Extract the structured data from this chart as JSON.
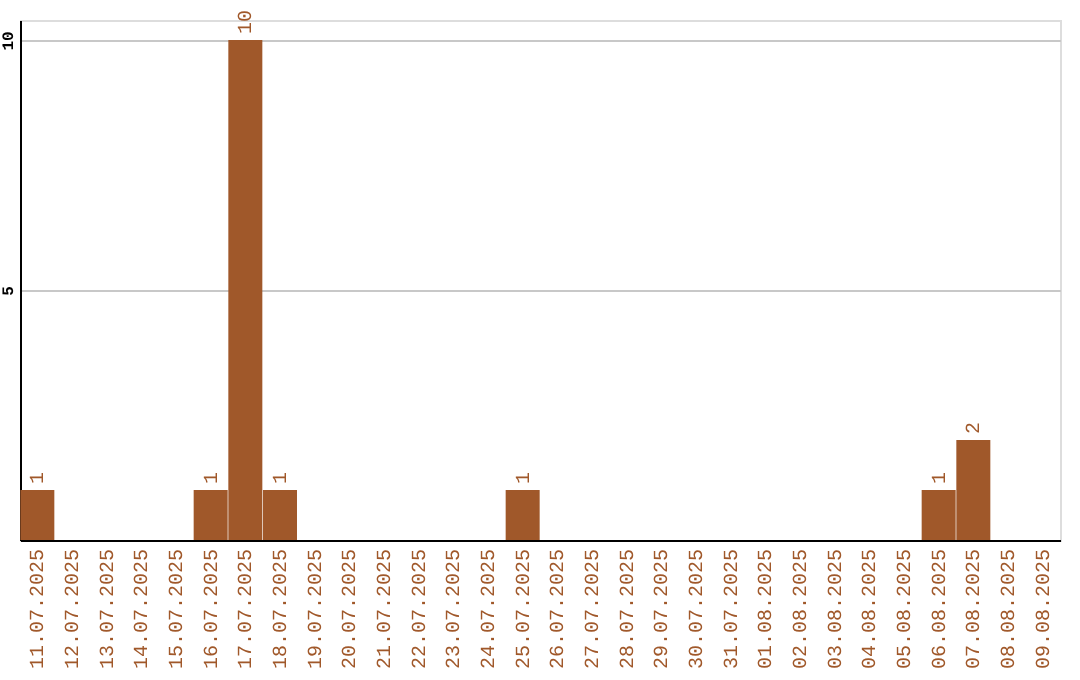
{
  "chart_data": {
    "type": "bar",
    "categories": [
      "11.07.2025",
      "12.07.2025",
      "13.07.2025",
      "14.07.2025",
      "15.07.2025",
      "16.07.2025",
      "17.07.2025",
      "18.07.2025",
      "19.07.2025",
      "20.07.2025",
      "21.07.2025",
      "22.07.2025",
      "23.07.2025",
      "24.07.2025",
      "25.07.2025",
      "26.07.2025",
      "27.07.2025",
      "28.07.2025",
      "29.07.2025",
      "30.07.2025",
      "31.07.2025",
      "01.08.2025",
      "02.08.2025",
      "03.08.2025",
      "04.08.2025",
      "05.08.2025",
      "06.08.2025",
      "07.08.2025",
      "08.08.2025",
      "09.08.2025"
    ],
    "values": [
      1,
      0,
      0,
      0,
      0,
      1,
      10,
      1,
      0,
      0,
      0,
      0,
      0,
      0,
      1,
      0,
      0,
      0,
      0,
      0,
      0,
      0,
      0,
      0,
      0,
      0,
      1,
      2,
      0,
      0
    ],
    "value_labels": [
      "1",
      null,
      null,
      null,
      null,
      "1",
      "10",
      "1",
      null,
      null,
      null,
      null,
      null,
      null,
      "1",
      null,
      null,
      null,
      null,
      null,
      null,
      null,
      null,
      null,
      null,
      null,
      "1",
      "2",
      null,
      null
    ],
    "color": "#a0582a",
    "ylim": [
      0,
      10.4
    ],
    "yticks": [
      5,
      10
    ],
    "grid": "y"
  }
}
